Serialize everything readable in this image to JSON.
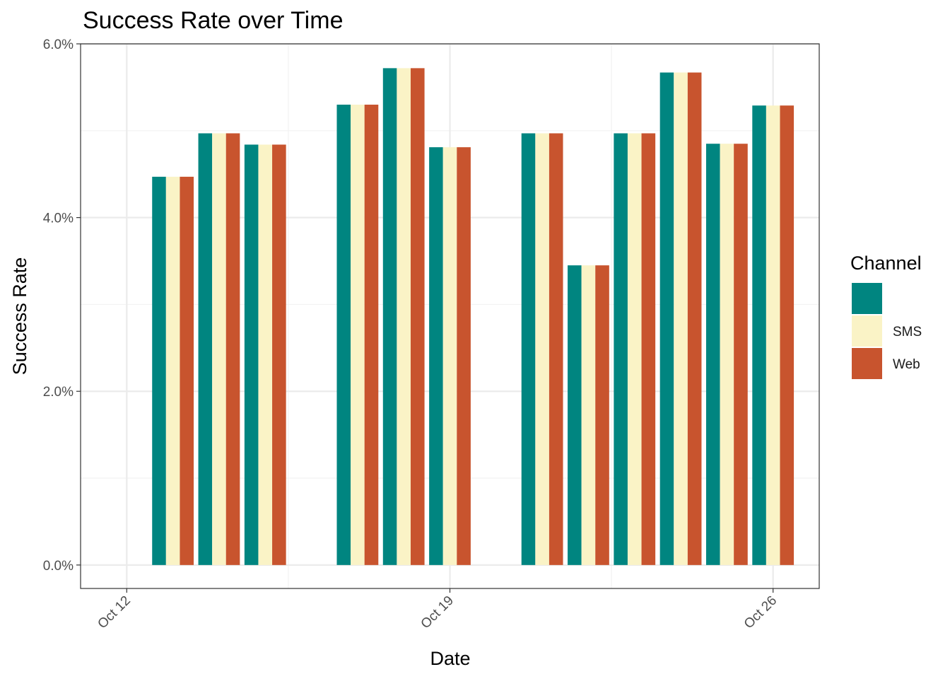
{
  "chart_data": {
    "type": "bar",
    "title": "Success Rate over Time",
    "xlabel": "Date",
    "ylabel": "Success Rate",
    "x_ticks": [
      {
        "date": "2023-10-12",
        "label": "Oct 12"
      },
      {
        "date": "2023-10-19",
        "label": "Oct 19"
      },
      {
        "date": "2023-10-26",
        "label": "Oct 26"
      }
    ],
    "xlim": [
      "2023-10-11",
      "2023-10-27"
    ],
    "ylim": [
      0,
      0.06
    ],
    "y_ticks": [
      {
        "value": 0.0,
        "label": "0.0%"
      },
      {
        "value": 0.02,
        "label": "2.0%"
      },
      {
        "value": 0.04,
        "label": "4.0%"
      },
      {
        "value": 0.06,
        "label": "6.0%"
      }
    ],
    "grid": true,
    "legend": {
      "title": "Channel",
      "position": "right"
    },
    "dates": [
      "2023-10-13",
      "2023-10-14",
      "2023-10-15",
      "2023-10-17",
      "2023-10-18",
      "2023-10-19",
      "2023-10-21",
      "2023-10-22",
      "2023-10-23",
      "2023-10-24",
      "2023-10-25",
      "2023-10-26"
    ],
    "series": [
      {
        "name": "",
        "color": "#008580",
        "values": [
          0.0447,
          0.0497,
          0.0484,
          0.053,
          0.0572,
          0.0481,
          0.0497,
          0.0345,
          0.0497,
          0.0567,
          0.0485,
          0.0529
        ]
      },
      {
        "name": "SMS",
        "color": "#FAF3C6",
        "values": [
          0.0447,
          0.0497,
          0.0484,
          0.053,
          0.0572,
          0.0481,
          0.0497,
          0.0345,
          0.0497,
          0.0567,
          0.0485,
          0.0529
        ]
      },
      {
        "name": "Web",
        "color": "#C8542E",
        "values": [
          0.0447,
          0.0497,
          0.0484,
          0.053,
          0.0572,
          0.0481,
          0.0497,
          0.0345,
          0.0497,
          0.0567,
          0.0485,
          0.0529
        ]
      }
    ]
  }
}
